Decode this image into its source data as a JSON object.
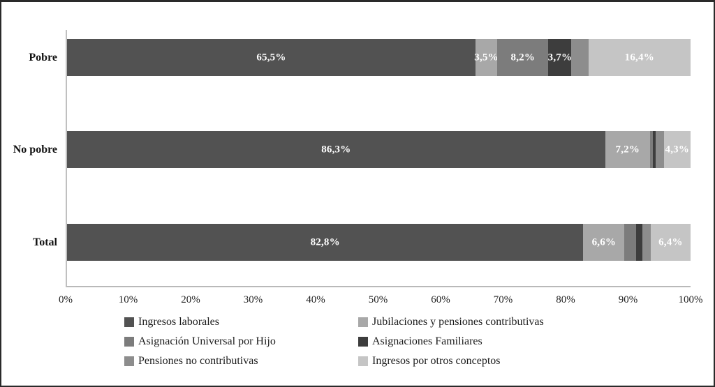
{
  "chart_data": {
    "type": "bar",
    "variant": "horizontal-stacked-100",
    "title": "",
    "xlabel": "",
    "ylabel": "",
    "axis": {
      "min": 0,
      "max": 100,
      "tick_labels": [
        "0%",
        "10%",
        "20%",
        "30%",
        "40%",
        "50%",
        "60%",
        "70%",
        "80%",
        "90%",
        "100%"
      ]
    },
    "categories": [
      "Pobre",
      "No pobre",
      "Total"
    ],
    "series": [
      {
        "name": "Ingresos laborales",
        "color": "#525252",
        "values": [
          65.5,
          86.3,
          82.8
        ],
        "labels": [
          "65,5%",
          "86,3%",
          "82,8%"
        ]
      },
      {
        "name": "Jubilaciones y pensiones contributivas",
        "color": "#a8a8a8",
        "values": [
          3.5,
          7.2,
          6.6
        ],
        "labels": [
          "3,5%",
          "7,2%",
          "6,6%"
        ]
      },
      {
        "name": "Asignación Universal por Hijo",
        "color": "#7c7c7c",
        "values": [
          8.2,
          0.4,
          1.9
        ],
        "labels": [
          "8,2%",
          "",
          ""
        ]
      },
      {
        "name": "Asignaciones Familiares",
        "color": "#3d3d3d",
        "values": [
          3.7,
          0.5,
          1.0
        ],
        "labels": [
          "3,7%",
          "",
          ""
        ]
      },
      {
        "name": "Pensiones no contributivas",
        "color": "#8d8d8d",
        "values": [
          2.7,
          1.3,
          1.3
        ],
        "labels": [
          "",
          "",
          ""
        ]
      },
      {
        "name": "Ingresos por otros conceptos",
        "color": "#c5c5c5",
        "values": [
          16.4,
          4.3,
          6.4
        ],
        "labels": [
          "16,4%",
          "4,3%",
          "6,4%"
        ]
      }
    ],
    "legend": {
      "position": "bottom",
      "columns": 2,
      "entries": [
        "Ingresos laborales",
        "Jubilaciones y pensiones contributivas",
        "Asignación Universal por Hijo",
        "Asignaciones Familiares",
        "Pensiones no contributivas",
        "Ingresos por otros conceptos"
      ]
    },
    "grid": false
  }
}
